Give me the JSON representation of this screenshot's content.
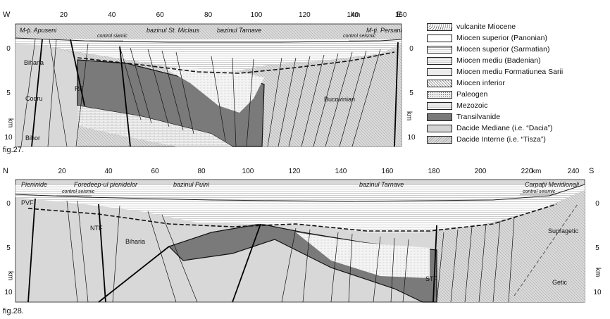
{
  "fig27": {
    "caption": "fig.27.",
    "end_left": "W",
    "end_right": "E",
    "x_unit": "km",
    "x_ticks": [
      "20",
      "40",
      "60",
      "80",
      "100",
      "120",
      "140",
      "160"
    ],
    "depth_unit": "km",
    "depth_ticks": [
      "0",
      "5",
      "10"
    ],
    "top_labels": [
      "M-ţi. Apuseni",
      "bazinul St. Miclaus",
      "bazinul Tarnave",
      "M-ţi. Persani"
    ],
    "seismic_left": "control siamic",
    "seismic_right": "control seismic",
    "unit_labels": [
      "Biharia",
      "Codru",
      "Bihor",
      "RF",
      "Bucovinian"
    ]
  },
  "fig28": {
    "caption": "fig.28.",
    "end_left": "N",
    "end_right": "S",
    "x_unit": "km",
    "x_ticks": [
      "20",
      "40",
      "60",
      "80",
      "100",
      "120",
      "140",
      "160",
      "180",
      "200",
      "220",
      "240"
    ],
    "depth_unit": "km",
    "depth_ticks": [
      "0",
      "5",
      "10"
    ],
    "top_labels": [
      "Pieninide",
      "Foredeep-ul pienidelor",
      "bazinul Puini",
      "bazinul Tarnave",
      "Carpaţii Meridionali"
    ],
    "seismic_left": "control seismic",
    "seismic_right": "control seismic",
    "unit_labels": [
      "PVF",
      "NTF",
      "Biharia",
      "STF",
      "Supragetic",
      "Getic"
    ]
  },
  "legend": [
    {
      "label": "vulcanite Miocene",
      "pattern": "dots"
    },
    {
      "label": "Miocen superior (Panonian)",
      "pattern": "blank"
    },
    {
      "label": "Miocen superior (Sarmatian)",
      "pattern": "hlines"
    },
    {
      "label": "Miocen mediu (Badenian)",
      "pattern": "dotlines"
    },
    {
      "label": "Miocen mediu Formatiunea Sarii",
      "pattern": "light"
    },
    {
      "label": "Miocen inferior",
      "pattern": "diag"
    },
    {
      "label": "Paleogen",
      "pattern": "dots2"
    },
    {
      "label": "Mezozoic",
      "pattern": "brick"
    },
    {
      "label": "Transilvanide",
      "pattern": "dark"
    },
    {
      "label": "Dacide Mediane (i.e. “Dacia”)",
      "pattern": "grey"
    },
    {
      "label": "Dacide Interne (i.e. “Tisza”)",
      "pattern": "hatch"
    }
  ]
}
